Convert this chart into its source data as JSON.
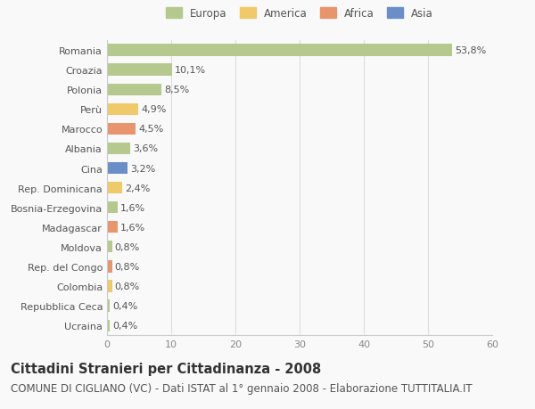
{
  "countries": [
    "Romania",
    "Croazia",
    "Polonia",
    "Perù",
    "Marocco",
    "Albania",
    "Cina",
    "Rep. Dominicana",
    "Bosnia-Erzegovina",
    "Madagascar",
    "Moldova",
    "Rep. del Congo",
    "Colombia",
    "Repubblica Ceca",
    "Ucraina"
  ],
  "values": [
    53.8,
    10.1,
    8.5,
    4.9,
    4.5,
    3.6,
    3.2,
    2.4,
    1.6,
    1.6,
    0.8,
    0.8,
    0.8,
    0.4,
    0.4
  ],
  "labels": [
    "53,8%",
    "10,1%",
    "8,5%",
    "4,9%",
    "4,5%",
    "3,6%",
    "3,2%",
    "2,4%",
    "1,6%",
    "1,6%",
    "0,8%",
    "0,8%",
    "0,8%",
    "0,4%",
    "0,4%"
  ],
  "regions": [
    "Europa",
    "Europa",
    "Europa",
    "America",
    "Africa",
    "Europa",
    "Asia",
    "America",
    "Europa",
    "Africa",
    "Europa",
    "Africa",
    "America",
    "Europa",
    "Europa"
  ],
  "colors": {
    "Europa": "#b5c98e",
    "America": "#f0c96a",
    "Africa": "#e8956d",
    "Asia": "#6a8fc8"
  },
  "legend_order": [
    "Europa",
    "America",
    "Africa",
    "Asia"
  ],
  "title": "Cittadini Stranieri per Cittadinanza - 2008",
  "subtitle": "COMUNE DI CIGLIANO (VC) - Dati ISTAT al 1° gennaio 2008 - Elaborazione TUTTITALIA.IT",
  "xlim": [
    0,
    60
  ],
  "xticks": [
    0,
    10,
    20,
    30,
    40,
    50,
    60
  ],
  "background_color": "#f9f9f9",
  "bar_height": 0.6,
  "title_fontsize": 10.5,
  "subtitle_fontsize": 8.5,
  "label_fontsize": 8,
  "tick_fontsize": 8,
  "legend_fontsize": 8.5
}
